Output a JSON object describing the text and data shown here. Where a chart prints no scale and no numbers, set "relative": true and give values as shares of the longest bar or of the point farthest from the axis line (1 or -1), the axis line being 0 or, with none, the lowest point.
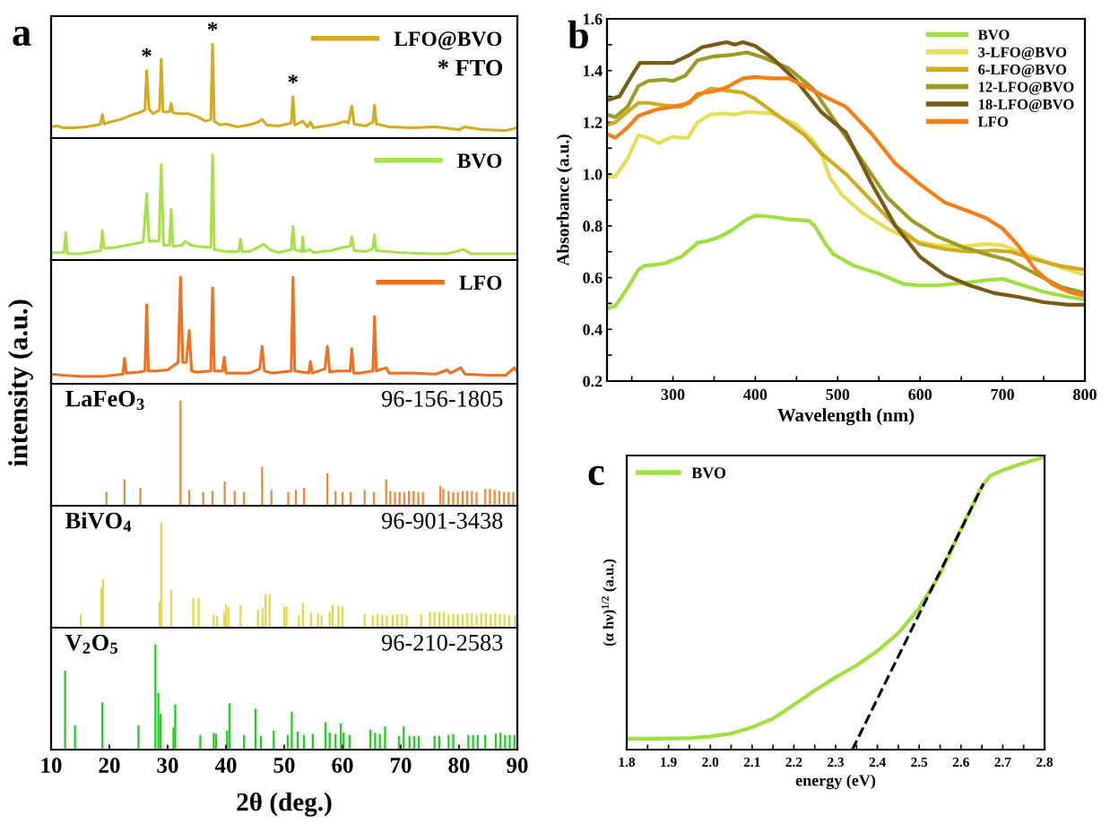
{
  "chart_data": [
    {
      "type": "line",
      "title": "a",
      "ylabel": "intensity (a.u.)",
      "relative": true,
      "xlim": [
        10,
        90
      ],
      "tick_labels": false,
      "legend": "top right",
      "series": [
        {
          "name": "LFO@BVO",
          "color": "#d4aa20",
          "x": [
            10,
            11,
            12,
            14,
            16,
            18,
            18.5,
            18.8,
            19.1,
            20,
            22,
            24,
            25.5,
            26.1,
            26.4,
            26.8,
            27.5,
            28.6,
            28.9,
            29.2,
            30.3,
            30.6,
            30.9,
            32,
            33.5,
            35,
            36.5,
            37.4,
            37.7,
            38.0,
            39,
            40,
            42,
            44,
            45.5,
            46.2,
            47,
            49,
            51.2,
            51.5,
            51.8,
            53.2,
            54,
            54.5,
            55,
            57,
            59,
            60.5,
            61,
            61.6,
            62,
            64,
            65.2,
            65.5,
            65.8,
            68,
            72,
            76,
            80,
            81,
            84,
            88,
            90
          ],
          "values": [
            0.12,
            0.13,
            0.11,
            0.11,
            0.12,
            0.14,
            0.15,
            0.25,
            0.15,
            0.17,
            0.2,
            0.25,
            0.28,
            0.3,
            0.72,
            0.31,
            0.26,
            0.3,
            0.84,
            0.28,
            0.28,
            0.37,
            0.27,
            0.26,
            0.26,
            0.23,
            0.18,
            0.2,
            1.0,
            0.18,
            0.14,
            0.15,
            0.12,
            0.14,
            0.17,
            0.2,
            0.14,
            0.13,
            0.16,
            0.44,
            0.14,
            0.18,
            0.12,
            0.17,
            0.11,
            0.13,
            0.15,
            0.18,
            0.16,
            0.34,
            0.15,
            0.13,
            0.17,
            0.35,
            0.15,
            0.12,
            0.11,
            0.12,
            0.09,
            0.12,
            0.09,
            0.08,
            0.11
          ]
        }
      ],
      "annotations": [
        {
          "text": "*",
          "x": 26.4,
          "y": 0.72
        },
        {
          "text": "*",
          "x": 37.7,
          "y": 1.0
        },
        {
          "text": "*",
          "x": 51.5,
          "y": 0.44
        },
        "* FTO"
      ]
    },
    {
      "type": "line",
      "relative": true,
      "xlim": [
        10,
        90
      ],
      "tick_labels": false,
      "legend": "top right",
      "series": [
        {
          "name": "BVO",
          "color": "#a8e04a",
          "x": [
            10,
            12.2,
            12.5,
            12.8,
            15,
            18.5,
            18.8,
            19.1,
            21,
            23,
            24.8,
            25.8,
            26.4,
            26.8,
            28.5,
            28.9,
            29.3,
            30.3,
            30.6,
            30.9,
            32.5,
            33,
            34,
            35,
            37.4,
            37.7,
            38.0,
            39,
            40,
            42.2,
            42.5,
            42.8,
            44,
            45.5,
            46.5,
            47.5,
            49,
            51.2,
            51.5,
            51.8,
            53,
            53.2,
            53.4,
            54.5,
            55,
            58,
            60,
            61.3,
            61.6,
            62,
            64,
            65.2,
            65.5,
            65.8,
            70,
            75,
            78,
            80.8,
            82,
            86,
            90
          ],
          "values": [
            0.07,
            0.07,
            0.26,
            0.06,
            0.06,
            0.09,
            0.28,
            0.11,
            0.12,
            0.14,
            0.16,
            0.17,
            0.63,
            0.18,
            0.18,
            0.91,
            0.14,
            0.14,
            0.48,
            0.13,
            0.14,
            0.18,
            0.14,
            0.13,
            0.12,
            1.0,
            0.1,
            0.09,
            0.08,
            0.08,
            0.2,
            0.08,
            0.08,
            0.12,
            0.15,
            0.1,
            0.07,
            0.1,
            0.32,
            0.1,
            0.08,
            0.22,
            0.08,
            0.1,
            0.07,
            0.09,
            0.12,
            0.13,
            0.22,
            0.09,
            0.08,
            0.11,
            0.24,
            0.09,
            0.07,
            0.06,
            0.06,
            0.1,
            0.06,
            0.06,
            0.06
          ]
        }
      ]
    },
    {
      "type": "line",
      "relative": true,
      "xlim": [
        10,
        90
      ],
      "tick_labels": false,
      "legend": "top right",
      "series": [
        {
          "name": "LFO",
          "color": "#f07020",
          "x": [
            10,
            12,
            15,
            19,
            22.3,
            22.6,
            22.9,
            25,
            26.1,
            26.4,
            26.7,
            28,
            30,
            31.8,
            32.2,
            32.6,
            33.2,
            33.7,
            34.1,
            35,
            37.4,
            37.7,
            38.0,
            39.4,
            39.7,
            40,
            42,
            44,
            45.8,
            46.2,
            46.6,
            48,
            51.2,
            51.5,
            51.8,
            54.2,
            54.5,
            54.8,
            57,
            57.4,
            57.8,
            59,
            61.3,
            61.6,
            61.9,
            63,
            65.2,
            65.5,
            65.8,
            67.5,
            68,
            72,
            76,
            78,
            78.5,
            80.3,
            81,
            85,
            88,
            89.5,
            90
          ],
          "values": [
            0.09,
            0.08,
            0.07,
            0.07,
            0.09,
            0.24,
            0.1,
            0.11,
            0.12,
            0.74,
            0.12,
            0.12,
            0.13,
            0.2,
            1.0,
            0.2,
            0.2,
            0.5,
            0.12,
            0.11,
            0.12,
            0.9,
            0.12,
            0.12,
            0.25,
            0.1,
            0.1,
            0.1,
            0.14,
            0.35,
            0.12,
            0.1,
            0.12,
            1.0,
            0.12,
            0.1,
            0.21,
            0.1,
            0.14,
            0.35,
            0.11,
            0.12,
            0.12,
            0.33,
            0.1,
            0.1,
            0.12,
            0.63,
            0.12,
            0.15,
            0.1,
            0.1,
            0.09,
            0.13,
            0.1,
            0.15,
            0.09,
            0.08,
            0.08,
            0.15,
            0.11
          ]
        }
      ]
    },
    {
      "type": "bar",
      "relative": true,
      "xlim": [
        10,
        90
      ],
      "tick_labels": false,
      "series": [
        {
          "name": "LaFeO$_{3}$",
          "color": "#f0883a",
          "x": [
            19.5,
            22.6,
            25.3,
            32.2,
            33.7,
            36.1,
            37.7,
            39.8,
            41.5,
            43.1,
            46.2,
            47.8,
            50.7,
            52.0,
            53.4,
            57.4,
            58.8,
            60.0,
            61.4,
            63.8,
            65.4,
            67.5,
            68.2,
            69.0,
            69.8,
            70.6,
            71.4,
            72.2,
            73.0,
            73.8,
            76.8,
            77.3,
            78.2,
            79.0,
            79.8,
            80.6,
            81.4,
            82.2,
            83.0,
            84.5,
            85.3,
            86.1,
            86.9,
            87.7,
            88.5,
            89.3
          ],
          "values": [
            0.13,
            0.25,
            0.17,
            1.0,
            0.15,
            0.13,
            0.14,
            0.23,
            0.14,
            0.13,
            0.37,
            0.15,
            0.13,
            0.15,
            0.17,
            0.31,
            0.14,
            0.13,
            0.13,
            0.15,
            0.13,
            0.25,
            0.14,
            0.13,
            0.13,
            0.13,
            0.14,
            0.14,
            0.13,
            0.13,
            0.19,
            0.16,
            0.14,
            0.13,
            0.13,
            0.14,
            0.14,
            0.14,
            0.13,
            0.16,
            0.16,
            0.15,
            0.14,
            0.13,
            0.13,
            0.13
          ]
        }
      ],
      "annotations": [
        "96-156-1805"
      ]
    },
    {
      "type": "bar",
      "relative": true,
      "xlim": [
        10,
        90
      ],
      "tick_labels": false,
      "series": [
        {
          "name": "BiVO$_{4}$",
          "color": "#e2d84a",
          "x": [
            15.1,
            18.6,
            18.9,
            28.6,
            28.9,
            30.6,
            34.4,
            35.3,
            37.9,
            38.5,
            39.7,
            40.0,
            40.4,
            42.5,
            45.5,
            46.3,
            46.8,
            47.5,
            50.0,
            50.4,
            52.5,
            53.2,
            54.6,
            55.8,
            56.4,
            57.8,
            58.3,
            59.3,
            60.0,
            63.8,
            65.2,
            66.0,
            66.8,
            67.6,
            68.6,
            69.4,
            70.2,
            71.0,
            73.5,
            75.0,
            75.8,
            76.6,
            77.4,
            78.2,
            79.0,
            79.8,
            80.6,
            81.4,
            82.2,
            83.0,
            83.8,
            84.6,
            85.4,
            86.2,
            87.0,
            87.8,
            88.6,
            89.6
          ],
          "values": [
            0.13,
            0.38,
            0.46,
            0.25,
            1.0,
            0.36,
            0.28,
            0.28,
            0.12,
            0.11,
            0.15,
            0.22,
            0.2,
            0.21,
            0.17,
            0.19,
            0.32,
            0.32,
            0.2,
            0.2,
            0.12,
            0.23,
            0.14,
            0.14,
            0.12,
            0.15,
            0.22,
            0.21,
            0.2,
            0.13,
            0.12,
            0.13,
            0.12,
            0.12,
            0.12,
            0.13,
            0.13,
            0.12,
            0.13,
            0.15,
            0.15,
            0.15,
            0.15,
            0.13,
            0.13,
            0.13,
            0.13,
            0.14,
            0.14,
            0.13,
            0.14,
            0.14,
            0.13,
            0.14,
            0.13,
            0.13,
            0.12,
            0.12
          ]
        }
      ],
      "annotations": [
        "96-901-3438"
      ]
    },
    {
      "type": "bar",
      "relative": true,
      "xlim": [
        10,
        90
      ],
      "xticks": [
        10,
        20,
        30,
        40,
        50,
        60,
        70,
        80,
        90
      ],
      "tick_labels": "x",
      "xlabel": "2θ (deg.)",
      "series": [
        {
          "name": "V$_{2}$O$_{5}$",
          "color": "#22cc22",
          "x": [
            12.4,
            14.1,
            18.8,
            25.0,
            27.9,
            28.4,
            28.8,
            31.0,
            31.3,
            35.6,
            37.9,
            38.3,
            40.2,
            40.6,
            43.1,
            45.1,
            46.0,
            48.2,
            50.6,
            51.3,
            52.3,
            53.4,
            54.9,
            57.1,
            57.8,
            58.8,
            59.7,
            60.2,
            61.2,
            64.8,
            65.6,
            66.4,
            67.3,
            69.7,
            70.5,
            71.5,
            72.3,
            73.1,
            75.8,
            76.6,
            78.2,
            79.0,
            81.6,
            82.4,
            83.2,
            84.5,
            86.3,
            87.1,
            87.9,
            88.7,
            89.5
          ],
          "values": [
            0.75,
            0.23,
            0.45,
            0.23,
            1.0,
            0.54,
            0.34,
            0.21,
            0.43,
            0.14,
            0.16,
            0.15,
            0.18,
            0.44,
            0.14,
            0.39,
            0.13,
            0.18,
            0.14,
            0.36,
            0.17,
            0.14,
            0.15,
            0.26,
            0.16,
            0.15,
            0.25,
            0.16,
            0.14,
            0.19,
            0.16,
            0.15,
            0.22,
            0.13,
            0.22,
            0.13,
            0.13,
            0.13,
            0.13,
            0.13,
            0.14,
            0.15,
            0.14,
            0.14,
            0.14,
            0.14,
            0.15,
            0.16,
            0.14,
            0.14,
            0.14
          ]
        }
      ],
      "annotations": [
        "96-210-2583"
      ]
    },
    {
      "type": "line",
      "title": "b",
      "xlabel": "Wavelength (nm)",
      "ylabel": "Absorbance (a.u.)",
      "xlim": [
        220,
        800
      ],
      "ylim": [
        0.2,
        1.6
      ],
      "xticks": [
        {
          "value": 250,
          "label": null
        },
        300,
        {
          "value": 350,
          "label": null
        },
        400,
        {
          "value": 450,
          "label": null
        },
        500,
        {
          "value": 550,
          "label": null
        },
        600,
        {
          "value": 650,
          "label": null
        },
        700,
        {
          "value": 750,
          "label": null
        },
        800
      ],
      "yticks": [
        0.2,
        {
          "value": 0.3,
          "label": null
        },
        0.4,
        {
          "value": 0.5,
          "label": null
        },
        0.6,
        {
          "value": 0.7,
          "label": null
        },
        0.8,
        {
          "value": 0.9,
          "label": null
        },
        {
          "value": 1.0,
          "label": "1.0"
        },
        {
          "value": 1.1,
          "label": null
        },
        1.2,
        {
          "value": 1.3,
          "label": null
        },
        1.4,
        {
          "value": 1.5,
          "label": null
        },
        1.6
      ],
      "legend": "top right",
      "series": [
        {
          "name": "BVO",
          "color": "#9ee040",
          "x": [
            220,
            230,
            245,
            258,
            265,
            290,
            310,
            325,
            330,
            340,
            355,
            370,
            390,
            400,
            420,
            440,
            465,
            472,
            485,
            495,
            520,
            550,
            580,
            600,
            620,
            650,
            680,
            700,
            720,
            750,
            780,
            800
          ],
          "values": [
            0.48,
            0.49,
            0.56,
            0.63,
            0.645,
            0.655,
            0.68,
            0.72,
            0.735,
            0.74,
            0.755,
            0.78,
            0.825,
            0.84,
            0.835,
            0.825,
            0.82,
            0.8,
            0.73,
            0.69,
            0.645,
            0.615,
            0.575,
            0.57,
            0.57,
            0.578,
            0.59,
            0.595,
            0.575,
            0.545,
            0.525,
            0.515
          ]
        },
        {
          "name": "3-LFO@BVO",
          "color": "#e6de58",
          "x": [
            220,
            230,
            245,
            258,
            270,
            283,
            300,
            310,
            318,
            330,
            345,
            360,
            375,
            390,
            420,
            450,
            470,
            480,
            490,
            505,
            530,
            560,
            590,
            620,
            650,
            680,
            700,
            730,
            760,
            800
          ],
          "values": [
            0.99,
            0.99,
            1.06,
            1.15,
            1.14,
            1.12,
            1.145,
            1.14,
            1.14,
            1.2,
            1.23,
            1.235,
            1.23,
            1.24,
            1.235,
            1.19,
            1.13,
            1.08,
            0.99,
            0.92,
            0.85,
            0.79,
            0.745,
            0.725,
            0.72,
            0.73,
            0.725,
            0.69,
            0.65,
            0.61
          ]
        },
        {
          "name": "6-LFO@BVO",
          "color": "#d0aa20",
          "x": [
            220,
            230,
            245,
            258,
            270,
            290,
            310,
            330,
            345,
            360,
            385,
            400,
            430,
            460,
            480,
            510,
            540,
            570,
            600,
            630,
            660,
            690,
            710,
            740,
            770,
            800
          ],
          "values": [
            1.19,
            1.2,
            1.24,
            1.275,
            1.275,
            1.265,
            1.26,
            1.3,
            1.33,
            1.325,
            1.315,
            1.29,
            1.22,
            1.15,
            1.08,
            1.0,
            0.9,
            0.8,
            0.73,
            0.71,
            0.7,
            0.705,
            0.7,
            0.67,
            0.645,
            0.63
          ]
        },
        {
          "name": "12-LFO@BVO",
          "color": "#9e9a26",
          "x": [
            220,
            230,
            245,
            258,
            270,
            290,
            300,
            315,
            330,
            350,
            370,
            390,
            410,
            440,
            470,
            500,
            530,
            560,
            590,
            620,
            650,
            680,
            710,
            740,
            770,
            800
          ],
          "values": [
            1.23,
            1.22,
            1.26,
            1.34,
            1.36,
            1.365,
            1.36,
            1.38,
            1.44,
            1.455,
            1.46,
            1.47,
            1.45,
            1.41,
            1.33,
            1.19,
            1.05,
            0.91,
            0.82,
            0.76,
            0.72,
            0.69,
            0.665,
            0.615,
            0.565,
            0.54
          ]
        },
        {
          "name": "18-LFO@BVO",
          "color": "#7a5a14",
          "x": [
            220,
            235,
            250,
            260,
            280,
            300,
            320,
            335,
            350,
            365,
            375,
            385,
            400,
            420,
            450,
            480,
            510,
            540,
            570,
            600,
            630,
            660,
            690,
            720,
            750,
            780,
            800
          ],
          "values": [
            1.285,
            1.3,
            1.38,
            1.43,
            1.43,
            1.43,
            1.46,
            1.49,
            1.5,
            1.51,
            1.5,
            1.51,
            1.495,
            1.45,
            1.36,
            1.24,
            1.16,
            0.97,
            0.8,
            0.68,
            0.61,
            0.57,
            0.54,
            0.525,
            0.505,
            0.495,
            0.495
          ]
        },
        {
          "name": "LFO",
          "color": "#fa7d14",
          "x": [
            220,
            230,
            245,
            258,
            280,
            300,
            320,
            330,
            350,
            365,
            385,
            400,
            420,
            440,
            460,
            490,
            510,
            540,
            570,
            600,
            630,
            660,
            680,
            700,
            720,
            740,
            760,
            780,
            800
          ],
          "values": [
            1.155,
            1.14,
            1.18,
            1.225,
            1.25,
            1.26,
            1.275,
            1.31,
            1.32,
            1.335,
            1.37,
            1.375,
            1.37,
            1.37,
            1.34,
            1.29,
            1.26,
            1.16,
            1.04,
            0.96,
            0.89,
            0.855,
            0.83,
            0.79,
            0.72,
            0.63,
            0.575,
            0.545,
            0.53
          ]
        }
      ]
    },
    {
      "type": "line",
      "title": "c",
      "xlabel": "energy (eV)",
      "ylabel": "(α hν)$^{1/2}$ (a.u.)",
      "relative": true,
      "xlim": [
        1.8,
        2.8
      ],
      "xticks": [
        1.8,
        {
          "value": 1.85,
          "label": null
        },
        1.9,
        {
          "value": 1.95,
          "label": null
        },
        {
          "value": 2.0,
          "label": "2.0"
        },
        {
          "value": 2.05,
          "label": null
        },
        2.1,
        {
          "value": 2.15,
          "label": null
        },
        2.2,
        {
          "value": 2.25,
          "label": null
        },
        2.3,
        {
          "value": 2.35,
          "label": null
        },
        2.4,
        {
          "value": 2.45,
          "label": null
        },
        2.5,
        {
          "value": 2.55,
          "label": null
        },
        2.6,
        {
          "value": 2.65,
          "label": null
        },
        2.7,
        {
          "value": 2.75,
          "label": null
        },
        2.8
      ],
      "legend": "top left",
      "series": [
        {
          "name": "BVO",
          "color": "#9ee040",
          "x": [
            1.8,
            1.9,
            1.95,
            2.0,
            2.05,
            2.1,
            2.15,
            2.2,
            2.25,
            2.3,
            2.35,
            2.4,
            2.45,
            2.5,
            2.55,
            2.6,
            2.65,
            2.67,
            2.7,
            2.75,
            2.8
          ],
          "values": [
            0.037,
            0.038,
            0.039,
            0.045,
            0.055,
            0.076,
            0.106,
            0.153,
            0.202,
            0.247,
            0.288,
            0.337,
            0.398,
            0.483,
            0.6,
            0.753,
            0.9,
            0.936,
            0.955,
            0.979,
            1.0
          ]
        },
        {
          "color": "#000000",
          "line_style": "dashed",
          "x": [
            2.34,
            2.654
          ],
          "values": [
            0,
            0.909
          ]
        }
      ]
    }
  ]
}
